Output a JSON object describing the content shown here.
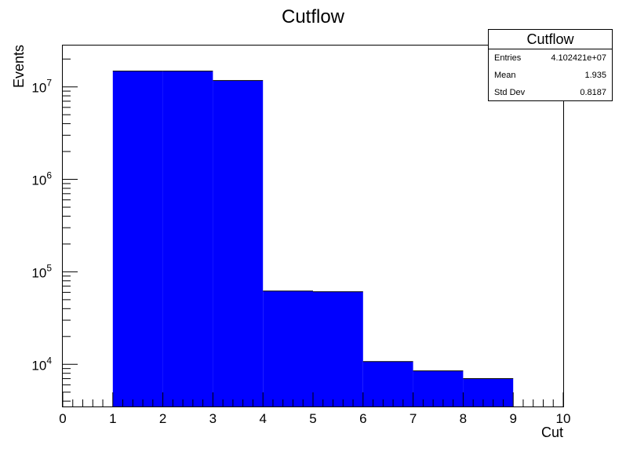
{
  "chart_data": {
    "type": "bar",
    "title": "Cutflow",
    "xlabel": "Cut",
    "ylabel": "Events",
    "xlim": [
      0,
      10
    ],
    "ylim": [
      3500,
      28000000
    ],
    "yscale": "log",
    "x_ticks": [
      0,
      1,
      2,
      3,
      4,
      5,
      6,
      7,
      8,
      9,
      10
    ],
    "y_ticks": [
      {
        "value": 10000,
        "base": "10",
        "exp": "4"
      },
      {
        "value": 100000,
        "base": "10",
        "exp": "5"
      },
      {
        "value": 1000000,
        "base": "10",
        "exp": "6"
      },
      {
        "value": 10000000,
        "base": "10",
        "exp": "7"
      }
    ],
    "bins": [
      {
        "x0": 1,
        "x1": 2,
        "value": 14800000
      },
      {
        "x0": 2,
        "x1": 3,
        "value": 14800000
      },
      {
        "x0": 3,
        "x1": 4,
        "value": 11700000
      },
      {
        "x0": 4,
        "x1": 5,
        "value": 62000
      },
      {
        "x0": 5,
        "x1": 6,
        "value": 61000
      },
      {
        "x0": 6,
        "x1": 7,
        "value": 10700
      },
      {
        "x0": 7,
        "x1": 8,
        "value": 8500
      },
      {
        "x0": 8,
        "x1": 9,
        "value": 7000
      }
    ],
    "bar_color": "#0000ff",
    "grid": false
  },
  "stats": {
    "title": "Cutflow",
    "rows": [
      {
        "label": "Entries",
        "value": "4.102421e+07"
      },
      {
        "label": "Mean",
        "value": "1.935"
      },
      {
        "label": "Std Dev",
        "value": "0.8187"
      }
    ]
  }
}
